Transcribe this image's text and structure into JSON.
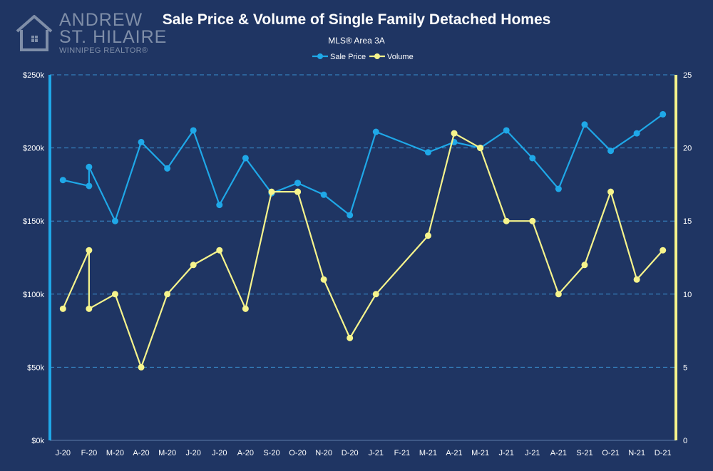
{
  "branding": {
    "line1": "ANDREW",
    "line2": "ST. HILAIRE",
    "line3": "WINNIPEG REALTOR®",
    "logo_icon": "house-icon"
  },
  "colors": {
    "background": "#1f3563",
    "sale_price": "#1fa8e8",
    "volume": "#f6f48c",
    "grid": "#3a8fd0"
  },
  "chart_data": {
    "type": "line",
    "title": "Sale Price & Volume of Single Family Detached Homes",
    "subtitle": "MLS® Area 3A",
    "categories": [
      "J-20",
      "F-20",
      "F-20",
      "M-20",
      "A-20",
      "M-20",
      "J-20",
      "J-20",
      "A-20",
      "S-20",
      "O-20",
      "O-20",
      "N-20",
      "D-20",
      "J-21",
      "F-21",
      "M-21",
      "A-21",
      "M-21",
      "M-21",
      "J-21",
      "J-21",
      "A-21",
      "S-21",
      "O-21",
      "N-21",
      "D-21"
    ],
    "x_positions": [
      0,
      1,
      1,
      2,
      3,
      4,
      5,
      6,
      7,
      8,
      9,
      9,
      10,
      11,
      12,
      13,
      14,
      15,
      16,
      16,
      17,
      18,
      19,
      20,
      21,
      22,
      23
    ],
    "tick_labels": [
      "J-20",
      "F-20",
      "M-20",
      "A-20",
      "M-20",
      "J-20",
      "J-20",
      "A-20",
      "S-20",
      "O-20",
      "N-20",
      "D-20",
      "J-21",
      "F-21",
      "M-21",
      "A-21",
      "M-21",
      "J-21",
      "J-21",
      "A-21",
      "S-21",
      "O-21",
      "N-21",
      "D-21"
    ],
    "series": [
      {
        "name": "Sale Price",
        "axis": "left",
        "values": [
          178000,
          174000,
          187000,
          150000,
          204000,
          186000,
          212000,
          161000,
          193000,
          169000,
          176000,
          176000,
          168000,
          154000,
          211000,
          null,
          197000,
          204000,
          200000,
          200000,
          212000,
          193000,
          172000,
          216000,
          198000,
          210000,
          223000
        ]
      },
      {
        "name": "Volume",
        "axis": "right",
        "values": [
          9,
          13,
          9,
          10,
          5,
          10,
          12,
          13,
          9,
          17,
          17,
          17,
          11,
          7,
          10,
          null,
          14,
          21,
          20,
          20,
          15,
          15,
          10,
          12,
          17,
          11,
          13
        ]
      }
    ],
    "y_left": {
      "ticks": [
        0,
        50000,
        100000,
        150000,
        200000,
        250000
      ],
      "tick_labels": [
        "$0k",
        "$50k",
        "$100k",
        "$150k",
        "$200k",
        "$250k"
      ],
      "ylim": [
        0,
        250000
      ]
    },
    "y_right": {
      "ticks": [
        0,
        5,
        10,
        15,
        20,
        25
      ],
      "tick_labels": [
        "0",
        "5",
        "10",
        "15",
        "20",
        "25"
      ],
      "ylim": [
        0,
        25
      ]
    },
    "legend": {
      "position": "top-center",
      "entries": [
        "Sale Price",
        "Volume"
      ]
    },
    "grid": true
  }
}
